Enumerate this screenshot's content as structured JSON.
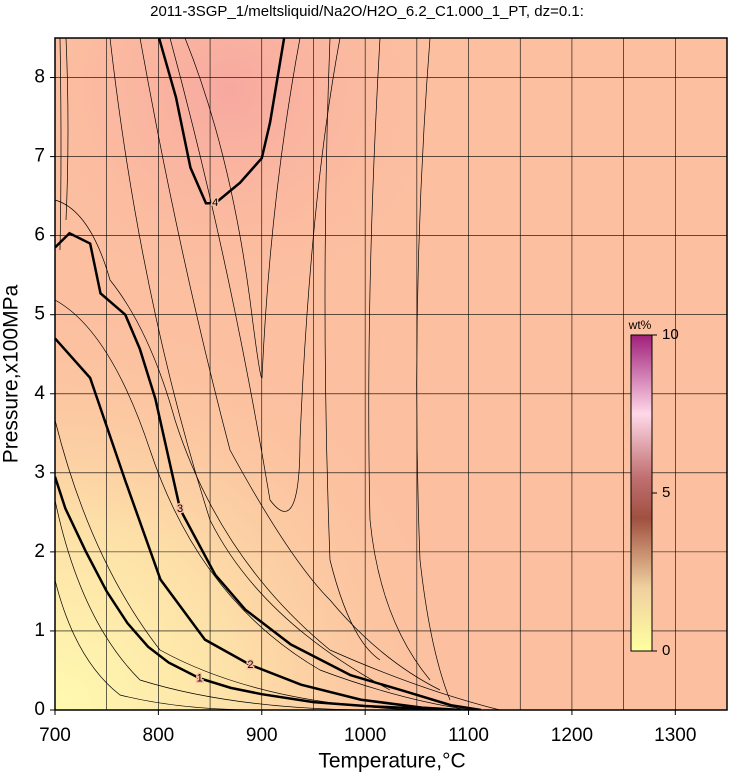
{
  "chart_data": {
    "type": "contour",
    "title": "2011-3SGP_1/meltsliquid/Na2O/H2O_6.2_C1.000_1_PT, dz=0.1:",
    "x_label": "Temperature,°C",
    "y_label": "Pressure,x100MPa",
    "xlim": [
      700,
      1350
    ],
    "ylim": [
      0,
      8.5
    ],
    "xticks": [
      700,
      800,
      900,
      1000,
      1100,
      1200,
      1300
    ],
    "yticks": [
      0,
      1,
      2,
      3,
      4,
      5,
      6,
      7,
      8
    ],
    "xgrid": [
      750,
      850,
      950,
      1050,
      1150,
      1250,
      1350
    ],
    "grid": true,
    "contours": [
      {
        "level": 1,
        "x": [
          700,
          710,
          730,
          750,
          770,
          790,
          810,
          840,
          870,
          900,
          950,
          1000,
          1050,
          1080
        ],
        "y": [
          2.95,
          2.55,
          2.0,
          1.5,
          1.1,
          0.8,
          0.6,
          0.4,
          0.28,
          0.2,
          0.1,
          0.05,
          0.02,
          0.0
        ]
      },
      {
        "level": 2,
        "x": [
          700,
          734,
          768,
          802,
          845,
          889,
          938,
          996,
          1055,
          1093
        ],
        "y": [
          4.7,
          4.2,
          2.9,
          1.65,
          0.89,
          0.57,
          0.32,
          0.13,
          0.03,
          0.0
        ]
      },
      {
        "level": 3,
        "x": [
          700,
          714,
          734,
          744,
          768,
          782,
          797,
          821,
          855,
          884,
          928,
          986,
          1035,
          1083,
          1112
        ],
        "y": [
          5.85,
          6.03,
          5.9,
          5.27,
          5.0,
          4.57,
          3.94,
          2.54,
          1.71,
          1.27,
          0.83,
          0.44,
          0.25,
          0.06,
          0.0
        ]
      },
      {
        "level": 4,
        "x": [
          800,
          817,
          831,
          846,
          855,
          879,
          900,
          908,
          922
        ],
        "y": [
          8.53,
          7.75,
          6.86,
          6.41,
          6.41,
          6.67,
          6.98,
          7.43,
          8.53
        ]
      }
    ],
    "colorbar": {
      "label": "wt%",
      "lim": [
        0,
        10
      ],
      "ticks": [
        0,
        5,
        10
      ]
    }
  }
}
